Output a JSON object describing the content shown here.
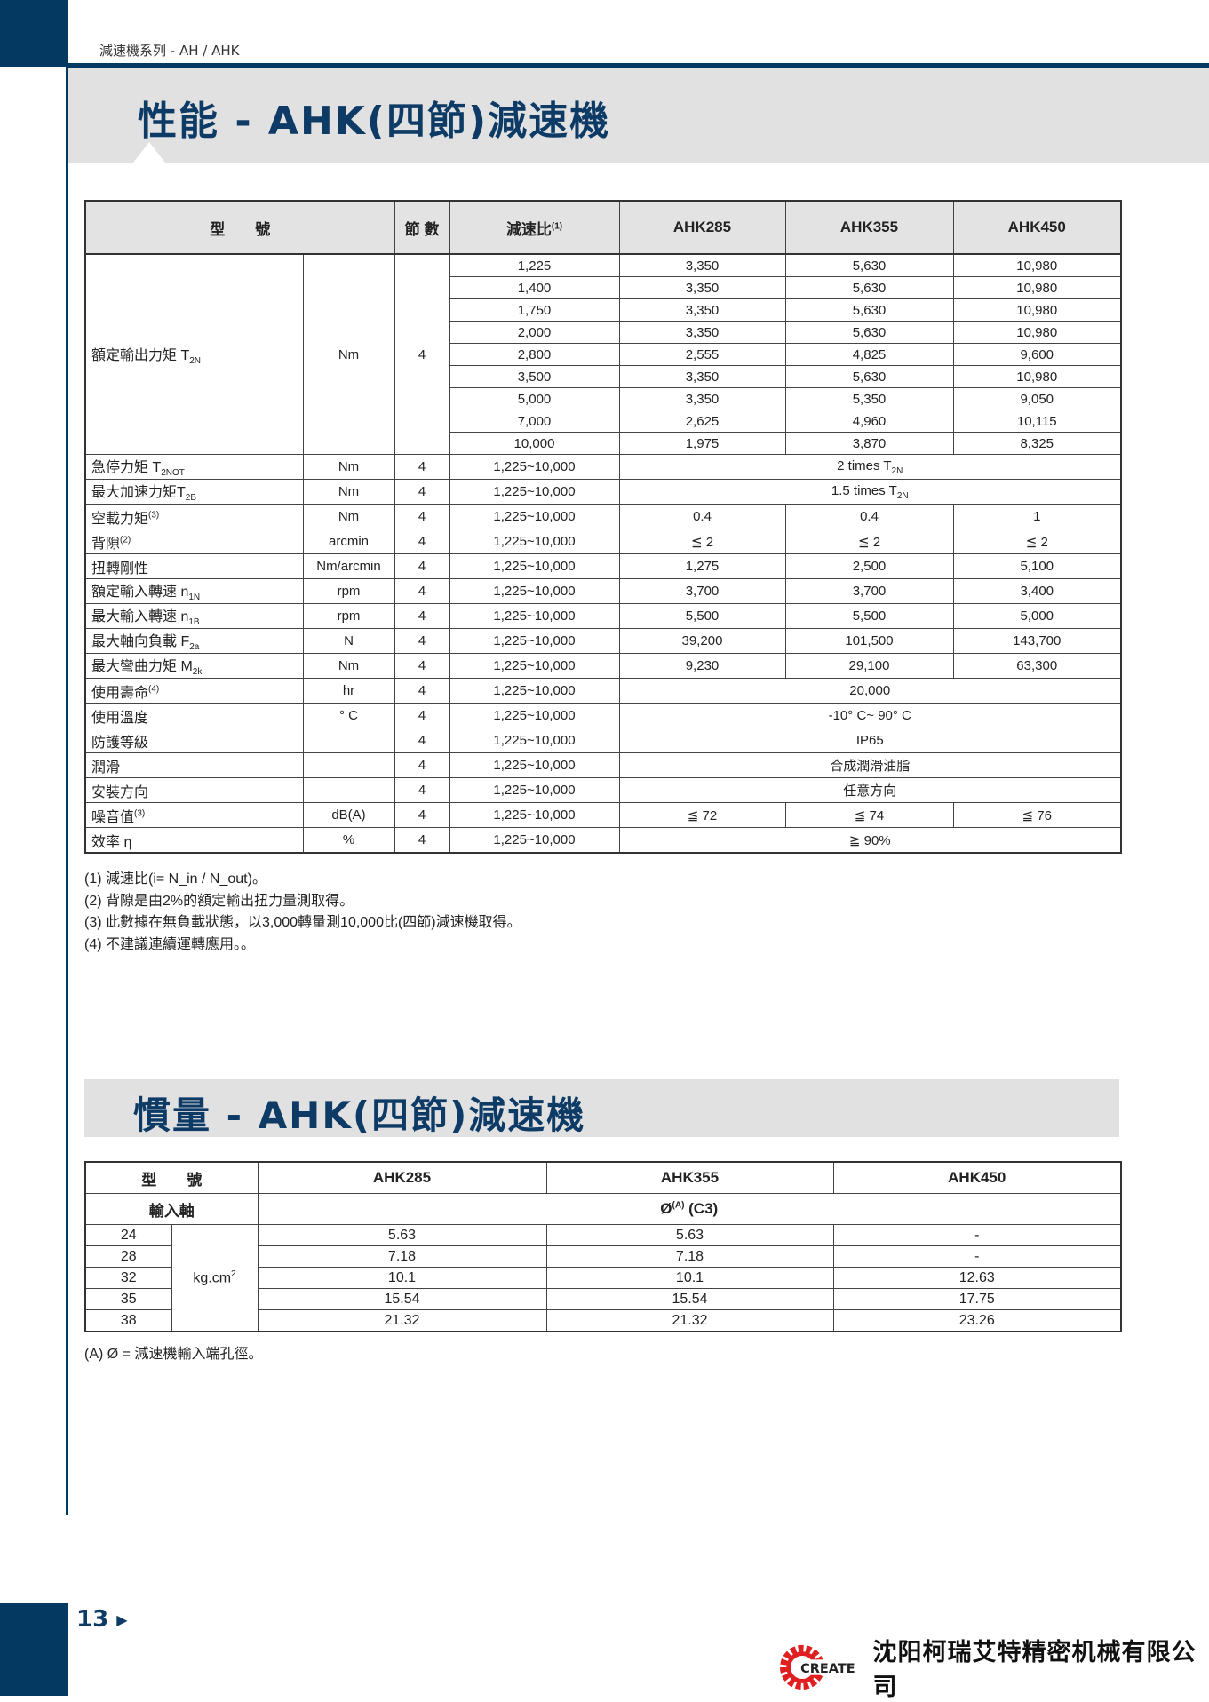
{
  "header": {
    "series": "減速機系列 - AH / AHK"
  },
  "section1": {
    "title": "性能 - AHK(四節)減速機",
    "columns": {
      "model": "型　　號",
      "stages": "節 數",
      "ratio": "減速比",
      "ratio_sup": "(1)",
      "models": [
        "AHK285",
        "AHK355",
        "AHK450"
      ]
    },
    "rated_torque": {
      "label": "額定輸出力矩 T",
      "sub": "2N",
      "unit": "Nm",
      "stages": "4",
      "rows": [
        [
          "1,225",
          "3,350",
          "5,630",
          "10,980"
        ],
        [
          "1,400",
          "3,350",
          "5,630",
          "10,980"
        ],
        [
          "1,750",
          "3,350",
          "5,630",
          "10,980"
        ],
        [
          "2,000",
          "3,350",
          "5,630",
          "10,980"
        ],
        [
          "2,800",
          "2,555",
          "4,825",
          "9,600"
        ],
        [
          "3,500",
          "3,350",
          "5,630",
          "10,980"
        ],
        [
          "5,000",
          "3,350",
          "5,350",
          "9,050"
        ],
        [
          "7,000",
          "2,625",
          "4,960",
          "10,115"
        ],
        [
          "10,000",
          "1,975",
          "3,870",
          "8,325"
        ]
      ]
    },
    "rows": [
      {
        "label": "急停力矩 T",
        "sub": "2NOT",
        "unit": "Nm",
        "stages": "4",
        "ratio": "1,225~10,000",
        "span": "2 times T",
        "span_sub": "2N"
      },
      {
        "label": "最大加速力矩T",
        "sub": "2B",
        "unit": "Nm",
        "stages": "4",
        "ratio": "1,225~10,000",
        "span": "1.5 times T",
        "span_sub": "2N"
      },
      {
        "label": "空載力矩",
        "sup": "(3)",
        "unit": "Nm",
        "stages": "4",
        "ratio": "1,225~10,000",
        "values": [
          "0.4",
          "0.4",
          "1"
        ]
      },
      {
        "label": "背隙",
        "sup": "(2)",
        "unit": "arcmin",
        "stages": "4",
        "ratio": "1,225~10,000",
        "values": [
          "≦ 2",
          "≦ 2",
          "≦ 2"
        ]
      },
      {
        "label": "扭轉剛性",
        "unit": "Nm/arcmin",
        "stages": "4",
        "ratio": "1,225~10,000",
        "values": [
          "1,275",
          "2,500",
          "5,100"
        ]
      },
      {
        "label": "額定輸入轉速 n",
        "sub": "1N",
        "unit": "rpm",
        "stages": "4",
        "ratio": "1,225~10,000",
        "values": [
          "3,700",
          "3,700",
          "3,400"
        ]
      },
      {
        "label": "最大輸入轉速 n",
        "sub": "1B",
        "unit": "rpm",
        "stages": "4",
        "ratio": "1,225~10,000",
        "values": [
          "5,500",
          "5,500",
          "5,000"
        ]
      },
      {
        "label": "最大軸向負載 F",
        "sub": "2a",
        "unit": "N",
        "stages": "4",
        "ratio": "1,225~10,000",
        "values": [
          "39,200",
          "101,500",
          "143,700"
        ]
      },
      {
        "label": "最大彎曲力矩 M",
        "sub": "2k",
        "unit": "Nm",
        "stages": "4",
        "ratio": "1,225~10,000",
        "values": [
          "9,230",
          "29,100",
          "63,300"
        ]
      },
      {
        "label": "使用壽命",
        "sup": "(4)",
        "unit": "hr",
        "stages": "4",
        "ratio": "1,225~10,000",
        "span": "20,000"
      },
      {
        "label": "使用溫度",
        "unit": "° C",
        "stages": "4",
        "ratio": "1,225~10,000",
        "span": "-10° C~ 90° C"
      },
      {
        "label": "防護等級",
        "unit": "",
        "stages": "4",
        "ratio": "1,225~10,000",
        "span": "IP65"
      },
      {
        "label": "潤滑",
        "unit": "",
        "stages": "4",
        "ratio": "1,225~10,000",
        "span": "合成潤滑油脂"
      },
      {
        "label": "安裝方向",
        "unit": "",
        "stages": "4",
        "ratio": "1,225~10,000",
        "span": "任意方向"
      },
      {
        "label": "噪音值",
        "sup": "(3)",
        "unit": "dB(A)",
        "stages": "4",
        "ratio": "1,225~10,000",
        "values": [
          "≦ 72",
          "≦ 74",
          "≦ 76"
        ]
      },
      {
        "label": "效率 η",
        "unit": "%",
        "stages": "4",
        "ratio": "1,225~10,000",
        "span": "≧ 90%"
      }
    ],
    "notes": [
      "(1) 減速比(i= N_in / N_out)。",
      "(2) 背隙是由2%的額定輸出扭力量測取得。",
      "(3) 此數據在無負載狀態，以3,000轉量測10,000比(四節)減速機取得。",
      "(4) 不建議連續運轉應用。。"
    ]
  },
  "section2": {
    "title": "慣量 - AHK(四節)減速機",
    "model_label": "型　　號",
    "models": [
      "AHK285",
      "AHK355",
      "AHK450"
    ],
    "shaft_label": "輸入軸",
    "shaft_value": "Ø",
    "shaft_sup": "(A)",
    "shaft_suffix": " (C3)",
    "unit": "kg.cm",
    "unit_sup": "2",
    "rows": [
      {
        "d": "24",
        "values": [
          "5.63",
          "5.63",
          "-"
        ]
      },
      {
        "d": "28",
        "values": [
          "7.18",
          "7.18",
          "-"
        ]
      },
      {
        "d": "32",
        "values": [
          "10.1",
          "10.1",
          "12.63"
        ]
      },
      {
        "d": "35",
        "values": [
          "15.54",
          "15.54",
          "17.75"
        ]
      },
      {
        "d": "38",
        "values": [
          "21.32",
          "21.32",
          "23.26"
        ]
      }
    ],
    "note": "(A) Ø = 減速機輸入端孔徑。"
  },
  "footer": {
    "page": "13",
    "logo_text": "CREATE",
    "company": "沈阳柯瑞艾特精密机械有限公司",
    "brand_color": "#e02020",
    "navy": "#043a62"
  }
}
